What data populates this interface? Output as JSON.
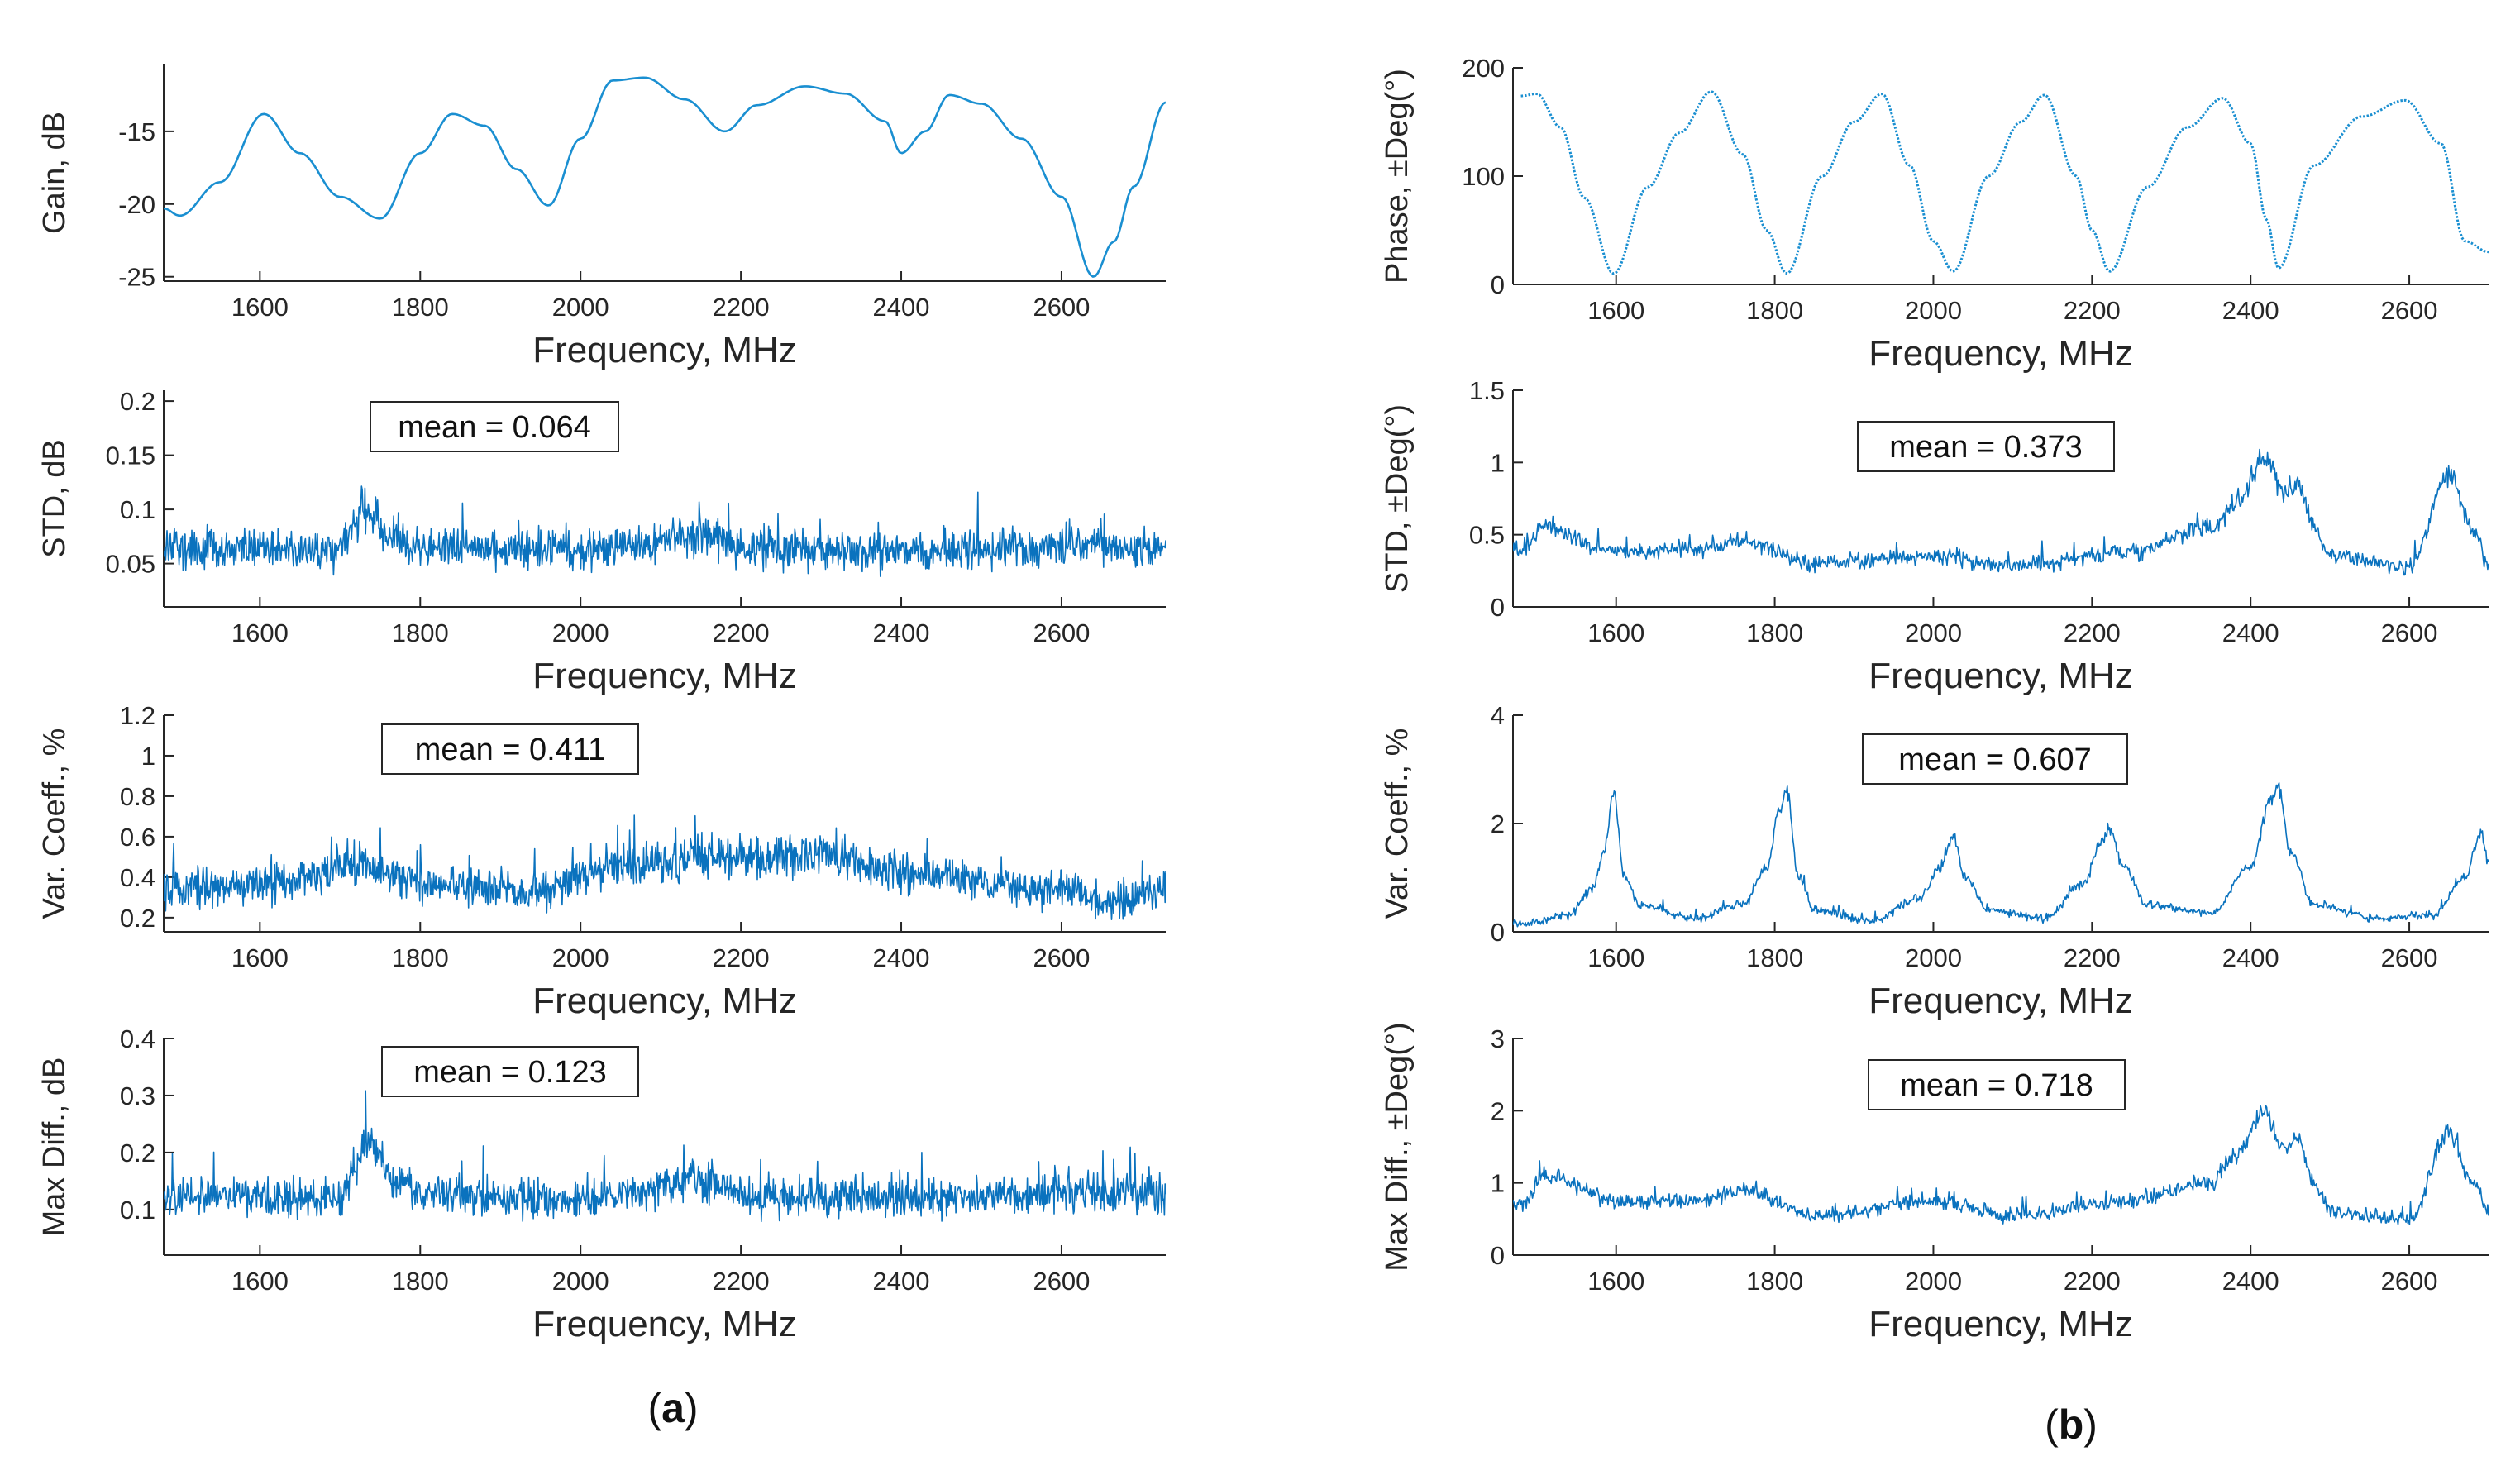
{
  "figure": {
    "panel_labels": [
      {
        "text": "(a)",
        "letter": "a"
      },
      {
        "text": "(b)",
        "letter": "b"
      }
    ]
  },
  "chart_data": [
    {
      "id": "gain",
      "column": "a",
      "type": "line",
      "xlabel": "Frequency, MHz",
      "ylabel": "Gain, dB",
      "xlim": [
        1480,
        2730
      ],
      "ylim": [
        -25.3,
        -10.4
      ],
      "xticks": [
        1600,
        1800,
        2000,
        2200,
        2400,
        2600
      ],
      "yticks": [
        -25,
        -20,
        -15
      ],
      "style": "smooth",
      "color": "#1a8fd1",
      "mean_label": "",
      "series": [
        {
          "x": [
            1480,
            1500,
            1550,
            1605,
            1650,
            1700,
            1750,
            1800,
            1840,
            1880,
            1920,
            1960,
            2000,
            2040,
            2080,
            2130,
            2180,
            2220,
            2280,
            2330,
            2380,
            2400,
            2430,
            2460,
            2500,
            2550,
            2600,
            2640,
            2665,
            2690,
            2730
          ],
          "y": [
            -20.3,
            -20.8,
            -18.5,
            -13.8,
            -16.5,
            -19.5,
            -21.0,
            -16.5,
            -13.8,
            -14.6,
            -17.6,
            -20.1,
            -15.5,
            -11.5,
            -11.3,
            -12.8,
            -15.0,
            -13.2,
            -11.9,
            -12.4,
            -14.3,
            -16.5,
            -15.0,
            -12.5,
            -13.1,
            -15.5,
            -19.5,
            -25.0,
            -22.6,
            -18.8,
            -13.0
          ]
        }
      ]
    },
    {
      "id": "std_gain",
      "column": "a",
      "type": "line",
      "xlabel": "Frequency, MHz",
      "ylabel": "STD, dB",
      "xlim": [
        1480,
        2730
      ],
      "ylim": [
        0.01,
        0.21
      ],
      "xticks": [
        1600,
        1800,
        2000,
        2200,
        2400,
        2600
      ],
      "yticks": [
        0.05,
        0.1,
        0.15,
        0.2
      ],
      "style": "noise",
      "color": "#0a72be",
      "noise_amp": 0.028,
      "noise_samples": 1500,
      "mean_label": "mean = 0.064",
      "series": [
        {
          "x": [
            1480,
            1700,
            1730,
            1760,
            1800,
            2000,
            2170,
            2200,
            2400,
            2650,
            2730
          ],
          "y": [
            0.064,
            0.063,
            0.1,
            0.075,
            0.065,
            0.062,
            0.075,
            0.063,
            0.062,
            0.066,
            0.064
          ]
        }
      ]
    },
    {
      "id": "var_gain",
      "column": "a",
      "type": "line",
      "xlabel": "Frequency, MHz",
      "ylabel": "Var. Coeff., %",
      "xlim": [
        1480,
        2730
      ],
      "ylim": [
        0.13,
        1.2
      ],
      "xticks": [
        1600,
        1800,
        2000,
        2200,
        2400,
        2600
      ],
      "yticks": [
        0.2,
        0.4,
        0.6,
        0.8,
        1,
        1.2
      ],
      "style": "noise",
      "color": "#0a72be",
      "noise_amp": 0.14,
      "noise_samples": 1500,
      "mean_label": "mean = 0.411",
      "series": [
        {
          "x": [
            1480,
            1600,
            1730,
            1800,
            1950,
            2050,
            2200,
            2300,
            2400,
            2600,
            2660,
            2730
          ],
          "y": [
            0.34,
            0.36,
            0.45,
            0.37,
            0.33,
            0.46,
            0.5,
            0.52,
            0.42,
            0.34,
            0.27,
            0.37
          ]
        }
      ]
    },
    {
      "id": "maxdiff_gain",
      "column": "a",
      "type": "line",
      "xlabel": "Frequency, MHz",
      "ylabel": "Max Diff., dB",
      "xlim": [
        1480,
        2730
      ],
      "ylim": [
        0.02,
        0.4
      ],
      "xticks": [
        1600,
        1800,
        2000,
        2200,
        2400,
        2600
      ],
      "yticks": [
        0.1,
        0.2,
        0.3,
        0.4
      ],
      "style": "noise",
      "color": "#0a72be",
      "noise_amp": 0.05,
      "noise_samples": 1500,
      "mean_label": "mean = 0.123",
      "series": [
        {
          "x": [
            1480,
            1700,
            1735,
            1770,
            1800,
            2000,
            2170,
            2200,
            2400,
            2650,
            2730
          ],
          "y": [
            0.125,
            0.12,
            0.22,
            0.15,
            0.125,
            0.118,
            0.15,
            0.122,
            0.12,
            0.13,
            0.125
          ]
        }
      ]
    },
    {
      "id": "phase",
      "column": "b",
      "type": "line",
      "xlabel": "Frequency, MHz",
      "ylabel": "Phase, ±Deg(°)",
      "xlim": [
        1470,
        2700
      ],
      "ylim": [
        0,
        200
      ],
      "xticks": [
        1600,
        1800,
        2000,
        2200,
        2400,
        2600
      ],
      "yticks": [
        0,
        100,
        200
      ],
      "style": "dotted",
      "color": "#1a8fd1",
      "mean_label": "",
      "series": [
        {
          "x": [
            1480,
            1500,
            1530,
            1560,
            1597,
            1640,
            1680,
            1720,
            1760,
            1790,
            1815,
            1860,
            1900,
            1935,
            1970,
            2000,
            2025,
            2070,
            2110,
            2140,
            2180,
            2200,
            2222,
            2270,
            2320,
            2365,
            2400,
            2420,
            2435,
            2480,
            2540,
            2595,
            2640,
            2670,
            2700
          ],
          "y": [
            174,
            176,
            145,
            80,
            10,
            90,
            140,
            178,
            120,
            50,
            10,
            100,
            150,
            176,
            110,
            40,
            12,
            100,
            150,
            175,
            100,
            50,
            12,
            90,
            145,
            172,
            130,
            60,
            15,
            110,
            155,
            170,
            130,
            40,
            30
          ]
        }
      ]
    },
    {
      "id": "std_phase",
      "column": "b",
      "type": "line",
      "xlabel": "Frequency, MHz",
      "ylabel": "STD, ±Deg(°)",
      "xlim": [
        1470,
        2700
      ],
      "ylim": [
        0,
        1.5
      ],
      "xticks": [
        1600,
        1800,
        2000,
        2200,
        2400,
        2600
      ],
      "yticks": [
        0,
        0.5,
        1,
        1.5
      ],
      "style": "noise",
      "color": "#0a72be",
      "noise_amp": 0.09,
      "noise_samples": 1100,
      "mean_label": "mean = 0.373",
      "series": [
        {
          "x": [
            1480,
            1510,
            1600,
            1700,
            1760,
            1850,
            2000,
            2100,
            2250,
            2350,
            2380,
            2420,
            2440,
            2460,
            2480,
            2500,
            2600,
            2650,
            2680,
            2700
          ],
          "y": [
            0.4,
            0.55,
            0.38,
            0.4,
            0.45,
            0.3,
            0.35,
            0.28,
            0.38,
            0.55,
            0.7,
            1.05,
            0.8,
            0.85,
            0.55,
            0.35,
            0.28,
            0.9,
            0.55,
            0.3
          ]
        }
      ]
    },
    {
      "id": "var_phase",
      "column": "b",
      "type": "line",
      "xlabel": "Frequency, MHz",
      "ylabel": "Var. Coeff., %",
      "xlim": [
        1470,
        2700
      ],
      "ylim": [
        0,
        4
      ],
      "xticks": [
        1600,
        1800,
        2000,
        2200,
        2400,
        2600
      ],
      "yticks": [
        0,
        2,
        4
      ],
      "style": "noise",
      "color": "#0a72be",
      "noise_amp": 0.14,
      "noise_samples": 1100,
      "mean_label": "mean = 0.607",
      "series": [
        {
          "x": [
            1480,
            1540,
            1570,
            1585,
            1597,
            1610,
            1630,
            1700,
            1760,
            1790,
            1805,
            1815,
            1830,
            1850,
            1920,
            1980,
            2010,
            2025,
            2040,
            2070,
            2140,
            2190,
            2210,
            2222,
            2240,
            2270,
            2350,
            2400,
            2425,
            2435,
            2450,
            2480,
            2560,
            2630,
            2670,
            2690,
            2700
          ],
          "y": [
            0.15,
            0.3,
            0.8,
            1.5,
            2.6,
            1.0,
            0.5,
            0.25,
            0.5,
            1.2,
            2.2,
            2.6,
            1.0,
            0.4,
            0.2,
            0.6,
            1.2,
            1.8,
            1.0,
            0.4,
            0.25,
            0.9,
            1.6,
            1.9,
            1.2,
            0.5,
            0.35,
            1.2,
            2.4,
            2.7,
            1.5,
            0.5,
            0.25,
            0.3,
            1.0,
            1.8,
            1.3
          ]
        }
      ]
    },
    {
      "id": "maxdiff_phase",
      "column": "b",
      "type": "line",
      "xlabel": "Frequency, MHz",
      "ylabel": "Max Diff., ±Deg(°)",
      "xlim": [
        1470,
        2700
      ],
      "ylim": [
        0,
        3
      ],
      "xticks": [
        1600,
        1800,
        2000,
        2200,
        2400,
        2600
      ],
      "yticks": [
        0,
        1,
        2,
        3
      ],
      "style": "noise",
      "color": "#0a72be",
      "noise_amp": 0.17,
      "noise_samples": 1100,
      "mean_label": "mean = 0.718",
      "series": [
        {
          "x": [
            1480,
            1510,
            1600,
            1700,
            1760,
            1850,
            2000,
            2100,
            2250,
            2350,
            2380,
            2420,
            2440,
            2460,
            2480,
            2500,
            2600,
            2650,
            2680,
            2700
          ],
          "y": [
            0.7,
            1.1,
            0.75,
            0.75,
            0.9,
            0.55,
            0.75,
            0.55,
            0.75,
            1.0,
            1.4,
            2.0,
            1.5,
            1.6,
            1.0,
            0.6,
            0.5,
            1.7,
            1.0,
            0.6
          ]
        }
      ]
    }
  ]
}
